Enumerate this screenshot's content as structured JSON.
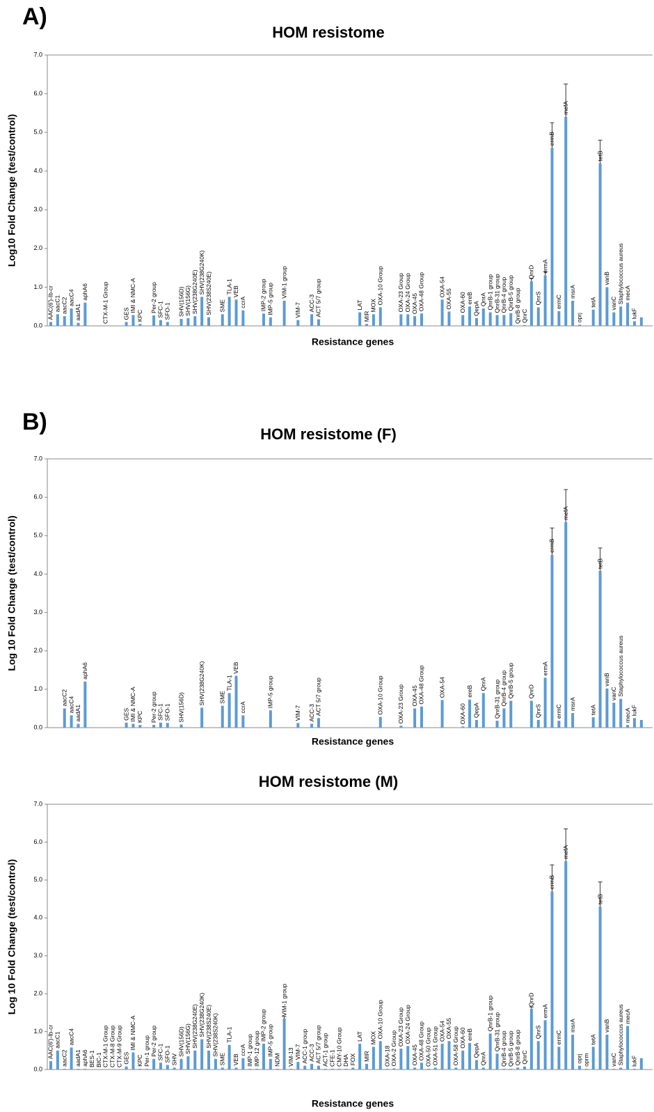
{
  "chart_data": [
    {
      "type": "bar",
      "panel": "A)",
      "title": "HOM resistome",
      "x_label": "Resistance genes",
      "y_label": "Log10 Fold Change (test/control)",
      "color": "#5b9bd5",
      "ylim": [
        0,
        7
      ],
      "yticks": [
        {
          "value": 0,
          "label": "0.0"
        },
        {
          "value": 1,
          "label": "1.0"
        },
        {
          "value": 2,
          "label": "2.0"
        },
        {
          "value": 3,
          "label": "3.0"
        },
        {
          "value": 4,
          "label": "4.0"
        },
        {
          "value": 5,
          "label": "5.0"
        },
        {
          "value": 6,
          "label": "6.0"
        },
        {
          "value": 7,
          "label": "7.0"
        }
      ],
      "categories": [
        "AAC(6')-Ib-cr",
        "aacC1",
        "aacC2",
        "aacC4",
        "aadA1",
        "aphA6",
        null,
        null,
        "CTX-M-1 Group",
        null,
        null,
        "GES",
        "IMI & NMC-A",
        "KPC",
        null,
        "Per-2 group",
        "SFC-1",
        "SFO-1",
        null,
        "SHV(156D)",
        "SHV(156G)",
        "SHV(238G240E)",
        "SHV(238G240K)",
        "SHV(238S240E)",
        null,
        "SME",
        "TLA-1",
        "VEB",
        "ccrA",
        null,
        null,
        "IMP-2 group",
        "IMP-5 group",
        null,
        "VIM-1 group",
        null,
        "VIM-7",
        null,
        "ACC-3",
        "ACT 5/7 group",
        null,
        null,
        null,
        null,
        null,
        "LAT",
        "MIR",
        "MOX",
        "OXA-10 Group",
        null,
        null,
        "OXA-23 Group",
        "OXA-24 Group",
        "OXA-45",
        "OXA-48 Group",
        null,
        null,
        "OXA-54",
        "OXA-55",
        null,
        "OXA-60",
        "ereB",
        "QepA",
        "QnrA",
        "QnrB-1 group",
        "QnrB-31 group",
        "QnrB-4 group",
        "QnrB-5 group",
        "QnrB-8 group",
        "QnrC",
        "QnrD",
        "QnrS",
        "ermA",
        "ermB",
        "ermC",
        "mefA",
        "msrA",
        "oprj",
        null,
        "tetA",
        "tetB",
        "vanB",
        "vanC",
        "Staphylococcus aureus",
        "mecA",
        "lukF",
        null
      ],
      "values": [
        0.1,
        0.3,
        0.25,
        0.45,
        0.08,
        0.6,
        null,
        null,
        0,
        null,
        null,
        0.1,
        0.28,
        0.05,
        null,
        0.27,
        0.15,
        0.1,
        null,
        0.18,
        0.2,
        0.25,
        0.75,
        0.22,
        null,
        0.3,
        0.75,
        0.68,
        0.4,
        null,
        null,
        0.32,
        0.22,
        null,
        0.65,
        null,
        0.15,
        null,
        0.3,
        0.17,
        null,
        null,
        null,
        null,
        null,
        0.35,
        0.05,
        0.3,
        0.48,
        null,
        null,
        0.3,
        0.3,
        0.25,
        0.32,
        null,
        null,
        0.68,
        0.37,
        null,
        0.28,
        0.5,
        0.2,
        0.45,
        0.35,
        0.28,
        0.28,
        0.33,
        0,
        0.02,
        1.15,
        0.48,
        1.3,
        4.6,
        0.38,
        5.4,
        0.65,
        0.03,
        null,
        0.42,
        4.2,
        1.0,
        0.35,
        0.5,
        0.6,
        0.12,
        0.22
      ],
      "errors": [
        null,
        null,
        null,
        null,
        null,
        null,
        null,
        null,
        null,
        null,
        null,
        null,
        null,
        null,
        null,
        null,
        null,
        null,
        null,
        null,
        null,
        null,
        null,
        null,
        null,
        null,
        null,
        null,
        null,
        null,
        null,
        null,
        null,
        null,
        null,
        null,
        null,
        null,
        null,
        null,
        null,
        null,
        null,
        null,
        null,
        null,
        null,
        null,
        null,
        null,
        null,
        null,
        null,
        null,
        null,
        null,
        null,
        null,
        null,
        null,
        null,
        null,
        null,
        null,
        null,
        null,
        null,
        null,
        null,
        null,
        0.08,
        null,
        0.1,
        0.65,
        null,
        0.85,
        null,
        null,
        null,
        null,
        0.6,
        null,
        null,
        null,
        null,
        null,
        null
      ]
    },
    {
      "type": "bar",
      "panel": "B)",
      "title": "HOM resistome (F)",
      "x_label": "Resistance genes",
      "y_label": "Log 10 Fold Change (test/control)",
      "color": "#5b9bd5",
      "ylim": [
        0,
        7
      ],
      "yticks": [
        {
          "value": 0,
          "label": "0.0"
        },
        {
          "value": 1,
          "label": "1.0"
        },
        {
          "value": 2,
          "label": "2.0"
        },
        {
          "value": 3,
          "label": "3.0"
        },
        {
          "value": 4,
          "label": "4.0"
        },
        {
          "value": 5,
          "label": "5.0"
        },
        {
          "value": 6,
          "label": "6.0"
        },
        {
          "value": 7,
          "label": "7.0"
        }
      ],
      "categories": [
        null,
        null,
        "aacC2",
        "aacC4",
        "aadA1",
        "aphA6",
        null,
        null,
        null,
        null,
        null,
        "GES",
        "IMI & NMC-A",
        "KPC",
        null,
        "Per-2 group",
        "SFC-1",
        "SFO-1",
        null,
        "SHV(156D)",
        null,
        null,
        "SHV(238G240K)",
        null,
        null,
        "SME",
        "TLA-1",
        "VEB",
        "ccrA",
        null,
        null,
        null,
        "IMP-5 group",
        null,
        null,
        null,
        "VIM-7",
        null,
        "ACC-3",
        "ACT 5/7 group",
        null,
        null,
        null,
        null,
        null,
        null,
        null,
        null,
        "OXA-10 Group",
        null,
        null,
        "OXA-23 Group",
        null,
        "OXA-45",
        "OXA-48 Group",
        null,
        null,
        "OXA-54",
        null,
        null,
        "OXA-60",
        "ereB",
        "QepA",
        "QnrA",
        null,
        "QnrB-31 group",
        "QnrB-4 group",
        "QnrB-5 group",
        null,
        null,
        "QnrD",
        "QnrS",
        "ermA",
        "ermB",
        "ermC",
        "mefA",
        "msrA",
        null,
        null,
        "tetA",
        "tetB",
        "vanB",
        "vanC",
        "Staphylococcus aureus",
        "mecA",
        "lukF",
        null
      ],
      "values": [
        null,
        null,
        0.5,
        0.32,
        0.1,
        1.2,
        null,
        null,
        null,
        null,
        null,
        0.13,
        0.1,
        0.07,
        null,
        0.07,
        0.13,
        0.12,
        null,
        0.08,
        null,
        null,
        0.52,
        null,
        null,
        0.57,
        0.9,
        1.35,
        0.32,
        null,
        null,
        null,
        0.45,
        null,
        null,
        null,
        0.12,
        null,
        0.1,
        0.25,
        null,
        null,
        null,
        null,
        null,
        null,
        null,
        null,
        0.28,
        null,
        null,
        0.05,
        null,
        0.5,
        0.55,
        null,
        null,
        0.72,
        null,
        null,
        0.03,
        0.73,
        0.2,
        0.9,
        null,
        0.18,
        0.5,
        0.7,
        null,
        null,
        0.7,
        0.2,
        1.3,
        4.5,
        0.18,
        5.35,
        0.38,
        null,
        null,
        0.27,
        4.08,
        1.02,
        0.65,
        0.75,
        0.07,
        0.25,
        0.2
      ],
      "errors": [
        null,
        null,
        null,
        null,
        null,
        null,
        null,
        null,
        null,
        null,
        null,
        null,
        null,
        null,
        null,
        null,
        null,
        null,
        null,
        null,
        null,
        null,
        null,
        null,
        null,
        null,
        null,
        null,
        null,
        null,
        null,
        null,
        null,
        null,
        null,
        null,
        null,
        null,
        null,
        null,
        null,
        null,
        null,
        null,
        null,
        null,
        null,
        null,
        null,
        null,
        null,
        null,
        null,
        null,
        null,
        null,
        null,
        null,
        null,
        null,
        null,
        null,
        null,
        null,
        null,
        null,
        null,
        null,
        null,
        null,
        null,
        null,
        null,
        0.7,
        null,
        0.85,
        null,
        null,
        null,
        null,
        0.6,
        null,
        null,
        null,
        null,
        null,
        null
      ]
    },
    {
      "type": "bar",
      "title": "HOM resistome (M)",
      "x_label": "Resistance genes",
      "y_label": "Log 10 Fold Change (test/control)",
      "color": "#5b9bd5",
      "ylim": [
        0,
        7
      ],
      "yticks": [
        {
          "value": 0,
          "label": "0.0"
        },
        {
          "value": 1,
          "label": "1.0"
        },
        {
          "value": 2,
          "label": "2.0"
        },
        {
          "value": 3,
          "label": "3.0"
        },
        {
          "value": 4,
          "label": "4.0"
        },
        {
          "value": 5,
          "label": "5.0"
        },
        {
          "value": 6,
          "label": "6.0"
        },
        {
          "value": 7,
          "label": "7.0"
        }
      ],
      "categories": [
        "AAC(6')-Ib-cr",
        "aacC1",
        "aacC2",
        "aacC4",
        "aadA1",
        "aphA6",
        "BES-1",
        "BIC-1",
        "CTX-M-1 Group",
        "CTX-M-8 Group",
        "CTX-M-9 Group",
        "GES",
        "IMI & NMC-A",
        "KPC",
        "Per-1 group",
        "Per-2 group",
        "SFC-1",
        "SFO-1",
        "SHV",
        "SHV(156D)",
        "SHV(156G)",
        "SHV(238G240E)",
        "SHV(238G240K)",
        "SHV(238S240E)",
        "SHV(238S240K)",
        "SME",
        "TLA-1",
        "VEB",
        "ccrA",
        "IMP-1 group",
        "IMP-12 group",
        "IMP-2 group",
        "IMP-5 group",
        "NDM",
        "VIM-1 group",
        "VIM-13",
        "VIM-7",
        "ACC-1 group",
        "ACC-3",
        "ACT 5/7 group",
        "ACT-1 group",
        "CFE-1",
        "CMY-10 Group",
        "DHA",
        "FOX",
        "LAT",
        "MIR",
        "MOX",
        "OXA-10 Group",
        "OXA-18",
        "OXA-2 Group",
        "OXA-23 Group",
        "OXA-24 Group",
        "OXA-45",
        "OXA-48 Group",
        "OXA-50 Group",
        "OXA-51 Group",
        "OXA-54",
        "OXA-55",
        "OXA-58 Group",
        "OXA-60",
        "ereB",
        "QepA",
        "QnrA",
        "QnrB-1 group",
        "QnrB-31 group",
        "QnrB-4 group",
        "QnrB-5 group",
        "QnrB-8 group",
        "QnrC",
        "QnrD",
        "QnrS",
        "ermA",
        "ermB",
        "ermC",
        "mefA",
        "msrA",
        "oprj",
        "oprm",
        "tetA",
        "tetB",
        "vanB",
        "vanC",
        "Staphylococcus aureus",
        "mecA",
        "lukF",
        null
      ],
      "values": [
        0.22,
        0.5,
        0.02,
        0.58,
        0.02,
        0.02,
        0,
        0,
        0,
        0,
        0,
        0.08,
        0.45,
        0.02,
        0.02,
        0.28,
        0.18,
        0.12,
        0.05,
        0.28,
        0.35,
        0.5,
        0.8,
        0.5,
        0.28,
        0.05,
        0.65,
        0.05,
        0.3,
        0.02,
        0.02,
        0.68,
        0.28,
        0.02,
        1.35,
        0.02,
        0.2,
        0.1,
        0.15,
        0.1,
        0.02,
        0.02,
        0.02,
        0.02,
        0.05,
        0.68,
        0.15,
        0.6,
        0.75,
        0.02,
        0.03,
        0.55,
        0.62,
        0.05,
        0.18,
        0.02,
        0.05,
        0.68,
        0.75,
        0.05,
        0.5,
        0.7,
        0.25,
        0.05,
        0.95,
        0.42,
        0.02,
        0.02,
        0.05,
        0.08,
        1.6,
        0.75,
        1.3,
        4.7,
        0.6,
        5.5,
        0.92,
        0.1,
        0.02,
        0.6,
        4.3,
        0.92,
        0.02,
        0.05,
        1.15,
        0.02,
        0.3
      ],
      "errors": [
        null,
        null,
        null,
        null,
        null,
        null,
        null,
        null,
        null,
        null,
        null,
        null,
        null,
        null,
        null,
        null,
        null,
        null,
        null,
        null,
        null,
        null,
        null,
        null,
        null,
        null,
        null,
        null,
        null,
        null,
        null,
        null,
        null,
        null,
        0.05,
        null,
        null,
        null,
        null,
        null,
        null,
        null,
        null,
        null,
        null,
        null,
        null,
        null,
        null,
        null,
        null,
        null,
        null,
        null,
        null,
        null,
        null,
        null,
        null,
        null,
        null,
        null,
        null,
        null,
        null,
        null,
        null,
        null,
        null,
        null,
        0.05,
        null,
        null,
        0.7,
        null,
        0.85,
        null,
        null,
        null,
        null,
        0.65,
        null,
        null,
        null,
        null,
        null,
        null
      ]
    }
  ]
}
